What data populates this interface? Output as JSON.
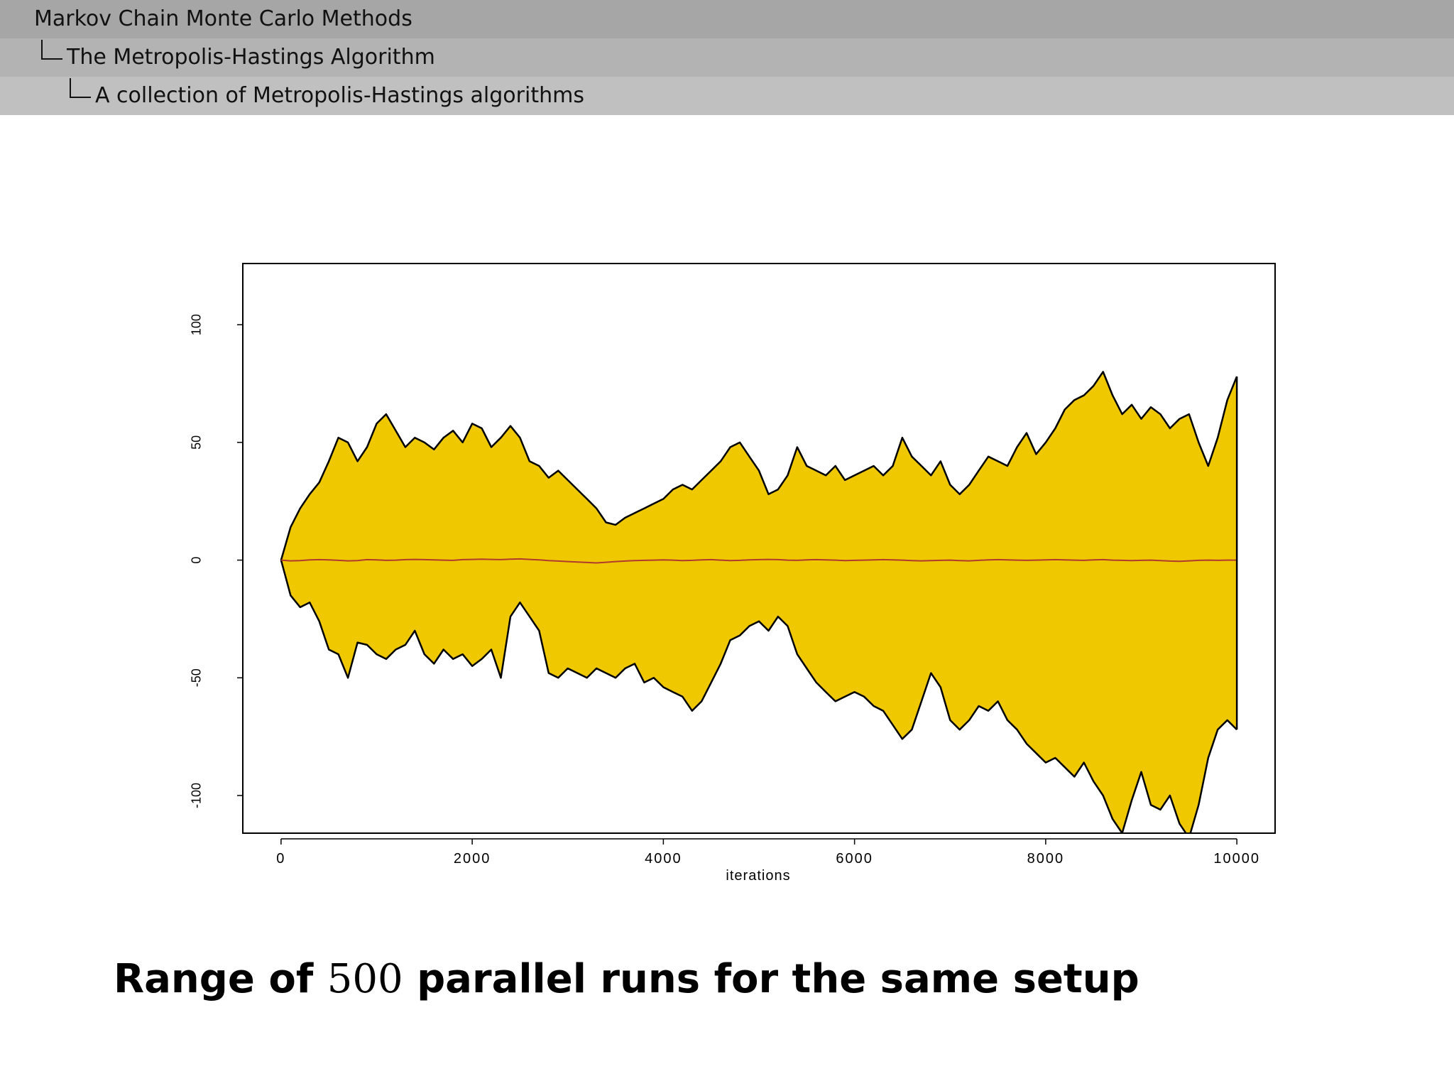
{
  "breadcrumb": {
    "level1": "Markov Chain Monte Carlo Methods",
    "level2": "The Metropolis-Hastings Algorithm",
    "level3": "A collection of Metropolis-Hastings algorithms"
  },
  "caption": {
    "prefix": "Range of",
    "number": "500",
    "suffix": "parallel runs for the same setup"
  },
  "colors": {
    "band_fill": "#f0c800",
    "band_outline": "#000000",
    "center_line": "#b03a2e"
  },
  "chart_data": {
    "type": "area",
    "title": "",
    "xlabel": "iterations",
    "ylabel": "",
    "xlim": [
      -400,
      10400
    ],
    "ylim": [
      -116,
      126
    ],
    "x_ticks": [
      0,
      2000,
      4000,
      6000,
      8000,
      10000
    ],
    "x_tick_labels": [
      "0",
      "2000",
      "4000",
      "6000",
      "8000",
      "10000"
    ],
    "y_ticks": [
      -100,
      -50,
      0,
      50,
      100
    ],
    "y_tick_labels": [
      "-100",
      "-50",
      "0",
      "50",
      "100"
    ],
    "grid": false,
    "legend": "none",
    "x": [
      0,
      100,
      200,
      300,
      400,
      500,
      600,
      700,
      800,
      900,
      1000,
      1100,
      1200,
      1300,
      1400,
      1500,
      1600,
      1700,
      1800,
      1900,
      2000,
      2100,
      2200,
      2300,
      2400,
      2500,
      2600,
      2700,
      2800,
      2900,
      3000,
      3100,
      3200,
      3300,
      3400,
      3500,
      3600,
      3700,
      3800,
      3900,
      4000,
      4100,
      4200,
      4300,
      4400,
      4500,
      4600,
      4700,
      4800,
      4900,
      5000,
      5100,
      5200,
      5300,
      5400,
      5500,
      5600,
      5700,
      5800,
      5900,
      6000,
      6100,
      6200,
      6300,
      6400,
      6500,
      6600,
      6700,
      6800,
      6900,
      7000,
      7100,
      7200,
      7300,
      7400,
      7500,
      7600,
      7700,
      7800,
      7900,
      8000,
      8100,
      8200,
      8300,
      8400,
      8500,
      8600,
      8700,
      8800,
      8900,
      9000,
      9100,
      9200,
      9300,
      9400,
      9500,
      9600,
      9700,
      9800,
      9900,
      10000
    ],
    "series": [
      {
        "values": [
          0,
          14,
          22,
          28,
          33,
          42,
          52,
          50,
          42,
          48,
          58,
          62,
          55,
          48,
          52,
          50,
          47,
          52,
          55,
          50,
          58,
          56,
          48,
          52,
          57,
          52,
          42,
          40,
          35,
          38,
          34,
          30,
          26,
          22,
          16,
          15,
          18,
          20,
          22,
          24,
          26,
          30,
          32,
          30,
          34,
          38,
          42,
          48,
          50,
          44,
          38,
          28,
          30,
          36,
          48,
          40,
          38,
          36,
          40,
          34,
          36,
          38,
          40,
          36,
          40,
          52,
          44,
          40,
          36,
          42,
          32,
          28,
          32,
          38,
          44,
          42,
          40,
          48,
          54,
          45,
          50,
          56,
          64,
          68,
          70,
          74,
          80,
          70,
          62,
          66,
          60,
          65,
          62,
          56,
          60,
          62,
          50,
          40,
          52,
          68,
          78
        ]
      },
      {
        "values": [
          0,
          -15,
          -20,
          -18,
          -26,
          -38,
          -40,
          -50,
          -35,
          -36,
          -40,
          -42,
          -38,
          -36,
          -30,
          -40,
          -44,
          -38,
          -42,
          -40,
          -45,
          -42,
          -38,
          -50,
          -24,
          -18,
          -24,
          -30,
          -48,
          -50,
          -46,
          -48,
          -50,
          -46,
          -48,
          -50,
          -46,
          -44,
          -52,
          -50,
          -54,
          -56,
          -58,
          -64,
          -60,
          -52,
          -44,
          -34,
          -32,
          -28,
          -26,
          -30,
          -24,
          -28,
          -40,
          -46,
          -52,
          -56,
          -60,
          -58,
          -56,
          -58,
          -62,
          -64,
          -70,
          -76,
          -72,
          -60,
          -48,
          -54,
          -68,
          -72,
          -68,
          -62,
          -64,
          -60,
          -68,
          -72,
          -78,
          -82,
          -86,
          -84,
          -88,
          -92,
          -86,
          -94,
          -100,
          -110,
          -116,
          -102,
          -90,
          -104,
          -106,
          -100,
          -112,
          -118,
          -104,
          -84,
          -72,
          -68,
          -72
        ]
      },
      {
        "values": [
          0,
          -0.3,
          -0.2,
          0.1,
          0.2,
          0.1,
          -0.1,
          -0.3,
          -0.2,
          0.2,
          0.1,
          -0.1,
          0.0,
          0.2,
          0.3,
          0.2,
          0.1,
          0.0,
          -0.1,
          0.2,
          0.3,
          0.4,
          0.3,
          0.2,
          0.4,
          0.5,
          0.3,
          0.1,
          -0.2,
          -0.4,
          -0.6,
          -0.8,
          -1.0,
          -1.2,
          -0.9,
          -0.6,
          -0.4,
          -0.2,
          -0.1,
          0.0,
          0.1,
          0.0,
          -0.2,
          -0.1,
          0.1,
          0.2,
          0.0,
          -0.2,
          -0.1,
          0.1,
          0.2,
          0.3,
          0.2,
          0.0,
          -0.1,
          0.1,
          0.2,
          0.1,
          0.0,
          -0.2,
          -0.1,
          0.0,
          0.1,
          0.2,
          0.1,
          0.0,
          -0.2,
          -0.3,
          -0.2,
          -0.1,
          0.0,
          -0.2,
          -0.3,
          -0.1,
          0.1,
          0.2,
          0.1,
          0.0,
          -0.1,
          0.0,
          0.1,
          0.2,
          0.1,
          0.0,
          -0.1,
          0.1,
          0.2,
          0.0,
          -0.1,
          -0.2,
          -0.1,
          0.0,
          -0.2,
          -0.4,
          -0.5,
          -0.3,
          -0.1,
          0.0,
          -0.1,
          0.0,
          0.0
        ]
      }
    ]
  }
}
